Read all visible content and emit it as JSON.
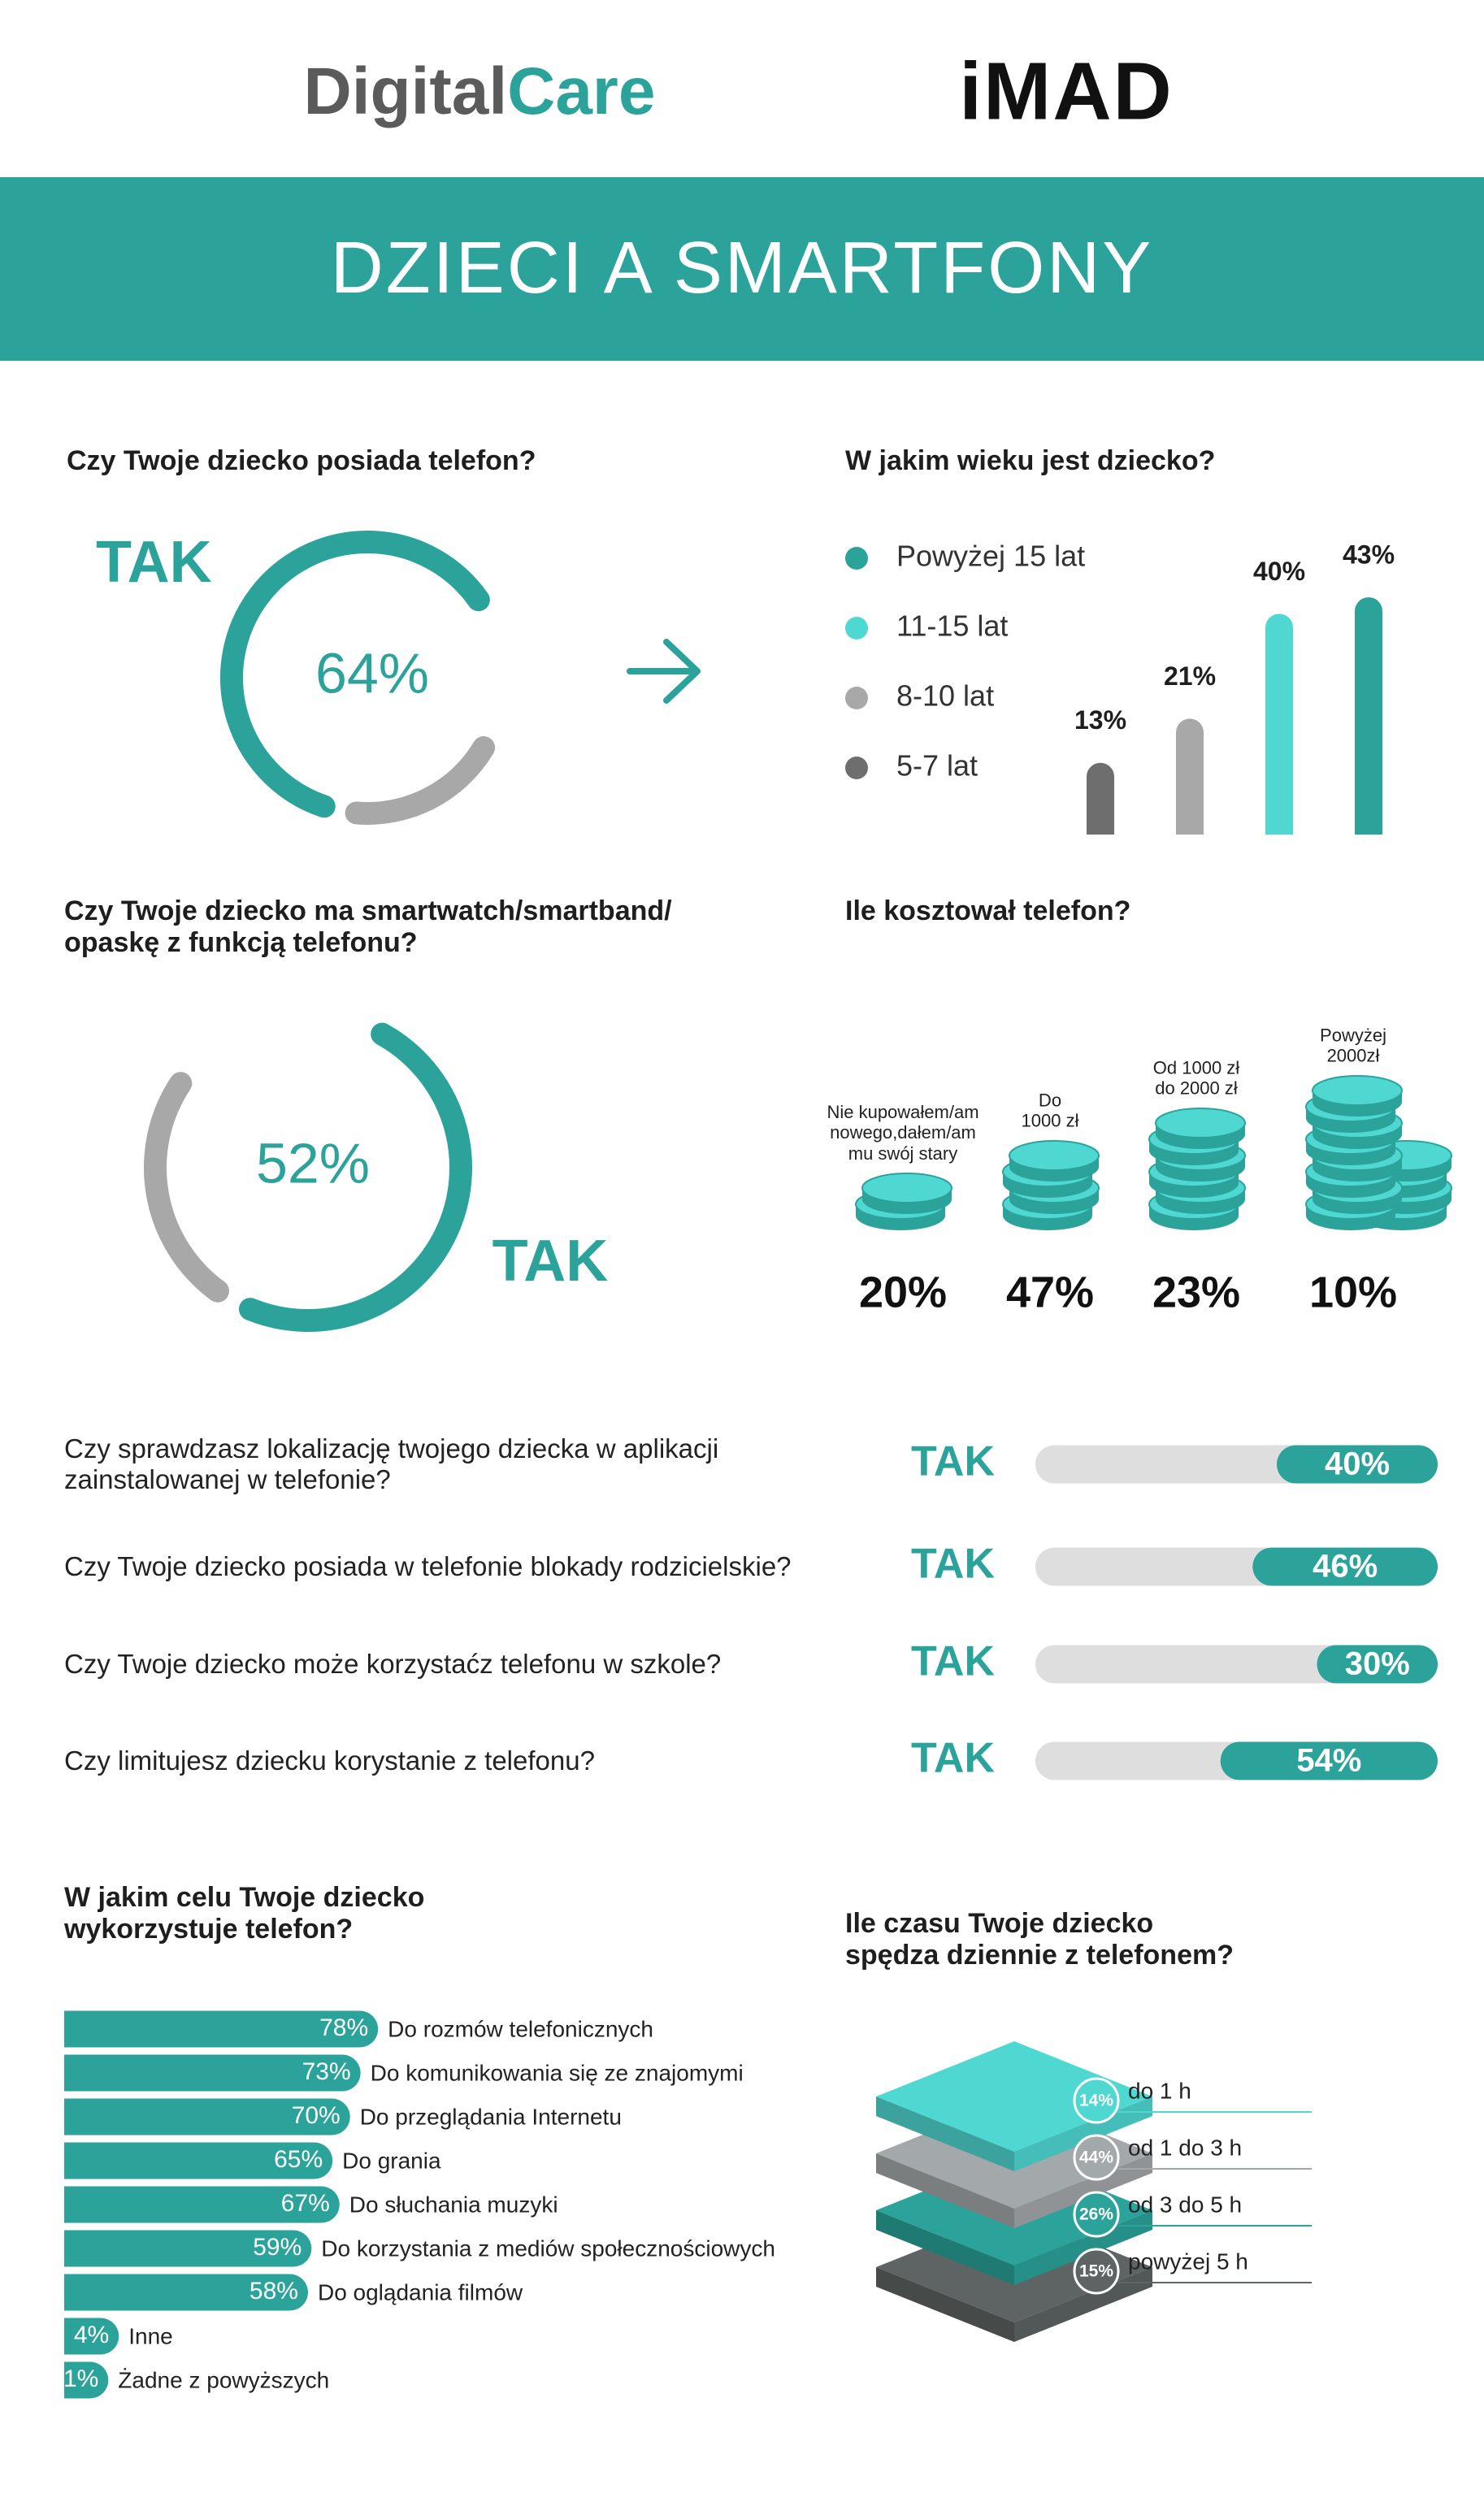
{
  "header": {
    "logo_left": [
      "Digital",
      "Care"
    ],
    "logo_right": "iMAD",
    "title": "DZIECI A SMARTFONY"
  },
  "chart_data": [
    {
      "type": "donut",
      "title": "Czy Twoje dziecko posiada telefon?",
      "label": "TAK",
      "value": 64,
      "value_label": "64%",
      "color": "#2ba39b",
      "rest_color": "#a8a8a8"
    },
    {
      "type": "bar",
      "title": "W jakim wieku jest dziecko?",
      "categories": [
        "Powyżej 15 lat",
        "11-15 lat",
        "8-10 lat",
        "5-7 lat"
      ],
      "values": [
        43,
        40,
        21,
        13
      ],
      "value_labels": [
        "43%",
        "40%",
        "21%",
        "13%"
      ],
      "colors": [
        "#2ba39b",
        "#4fd8d2",
        "#a8a8a8",
        "#6e6e6e"
      ]
    },
    {
      "type": "donut",
      "title": "Czy Twoje dziecko ma smartwatch/smartband/\nopaskę z funkcją telefonu?",
      "label": "TAK",
      "value": 52,
      "value_label": "52%",
      "color": "#2ba39b",
      "rest_color": "#a8a8a8"
    },
    {
      "type": "pictogram",
      "title": "Ile kosztował telefon?",
      "categories": [
        "Nie kupowałem/am\nnowego,dałem/am\nmu swój stary",
        "Do\n1000 zł",
        "Od 1000 zł\ndo 2000 zł",
        "Powyżej\n2000zł"
      ],
      "values": [
        20,
        47,
        23,
        10
      ],
      "value_labels": [
        "20%",
        "47%",
        "23%",
        "10%"
      ],
      "color": "#4fd8d2",
      "edge_color": "#2ba39b"
    },
    {
      "type": "progress",
      "categories": [
        "Czy sprawdzasz lokalizację twojego dziecka w aplikacji\nzainstalowanej w telefonie?",
        "Czy Twoje dziecko posiada w telefonie blokady rodzicielskie?",
        "Czy Twoje dziecko może korzystaćz telefonu w szkole?",
        "Czy limitujesz dziecku korystanie z telefonu?"
      ],
      "label": "TAK",
      "values": [
        40,
        46,
        30,
        54
      ],
      "value_labels": [
        "40%",
        "46%",
        "30%",
        "54%"
      ],
      "xlim": [
        0,
        100
      ],
      "color": "#2ba39b",
      "track_color": "#dedede"
    },
    {
      "type": "hbar",
      "title": "W jakim celu Twoje dziecko\nwykorzystuje telefon?",
      "categories": [
        "Do rozmów telefonicznych",
        "Do komunikowania się ze znajomymi",
        "Do przeglądania Internetu",
        "Do grania",
        "Do słuchania muzyki",
        "Do korzystania z mediów społecznościowych",
        "Do oglądania filmów",
        "Inne",
        "Żadne z powyższych"
      ],
      "values": [
        78,
        73,
        70,
        65,
        67,
        59,
        58,
        4,
        1
      ],
      "value_labels": [
        "78%",
        "73%",
        "70%",
        "65%",
        "67%",
        "59%",
        "58%",
        "4%",
        "1%"
      ],
      "xlim": [
        0,
        100
      ],
      "color": "#2ba39b"
    },
    {
      "type": "layers",
      "title": "Ile czasu Twoje dziecko\nspędza dziennie z telefonem?",
      "categories": [
        "do 1 h",
        "od 1 do 3 h",
        "od 3 do 5 h",
        "powyżej 5 h"
      ],
      "values": [
        14,
        44,
        26,
        15
      ],
      "value_labels": [
        "14%",
        "44%",
        "26%",
        "15%"
      ],
      "colors": [
        "#4fd8d2",
        "#a3a8aa",
        "#2ba39b",
        "#5e6463"
      ]
    }
  ]
}
